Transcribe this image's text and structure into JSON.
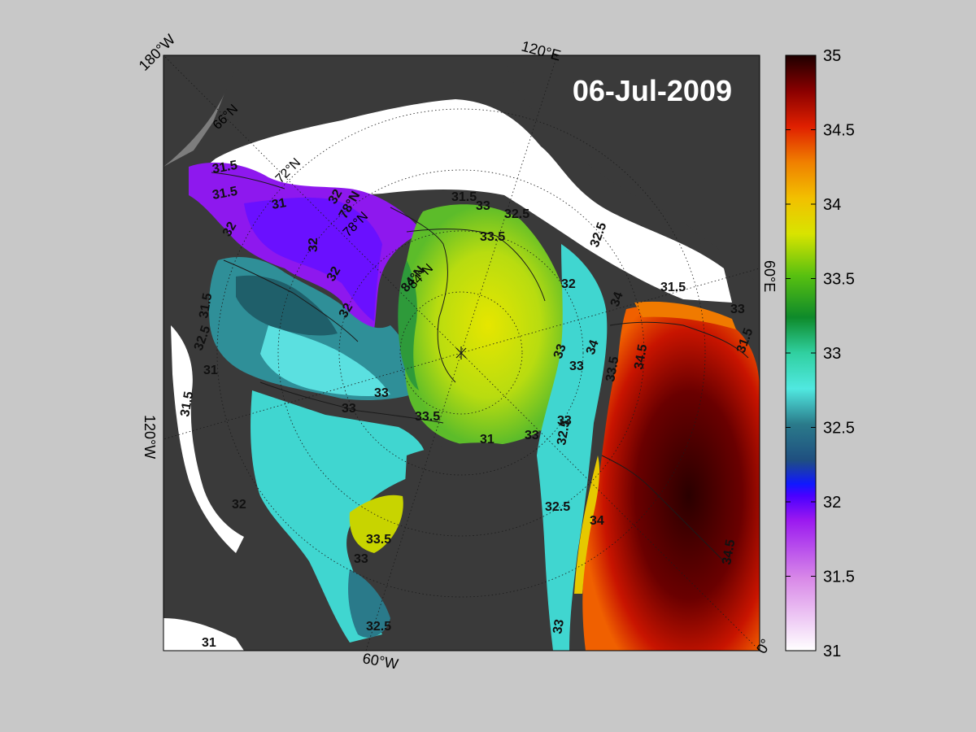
{
  "figure": {
    "date_label": "06-Jul-2009",
    "colors": {
      "background": "#c8c8c8",
      "land": "#3a3a3a",
      "land_far": "#7d7d7d",
      "ice": "#ffffff",
      "contour": "#1a1a1a"
    }
  },
  "map": {
    "longitude_labels": [
      "180°W",
      "120°E",
      "60°E",
      "0°",
      "60°W",
      "120°W"
    ],
    "latitude_labels": [
      "66°N",
      "72°N",
      "78°N",
      "84°N"
    ],
    "contour_labels": [
      "31.5",
      "31.5",
      "31",
      "32",
      "32",
      "32",
      "78°N",
      "32",
      "31.5",
      "33",
      "32.5",
      "33.5",
      "84°N",
      "32",
      "32.5",
      "33",
      "33.5",
      "33",
      "33",
      "34",
      "33",
      "34.5",
      "33.5",
      "34",
      "33",
      "32.5",
      "34",
      "33",
      "32.5",
      "33.5",
      "33",
      "32.5",
      "33",
      "34.5",
      "31.5",
      "31.5",
      "32.5",
      "31",
      "31.5",
      "32",
      "31",
      "33",
      "31.5",
      "32",
      "31"
    ]
  },
  "colorbar": {
    "tick_labels": [
      "35",
      "34.5",
      "34",
      "33.5",
      "33",
      "32.5",
      "32",
      "31.5",
      "31"
    ],
    "range": [
      31,
      35
    ]
  }
}
